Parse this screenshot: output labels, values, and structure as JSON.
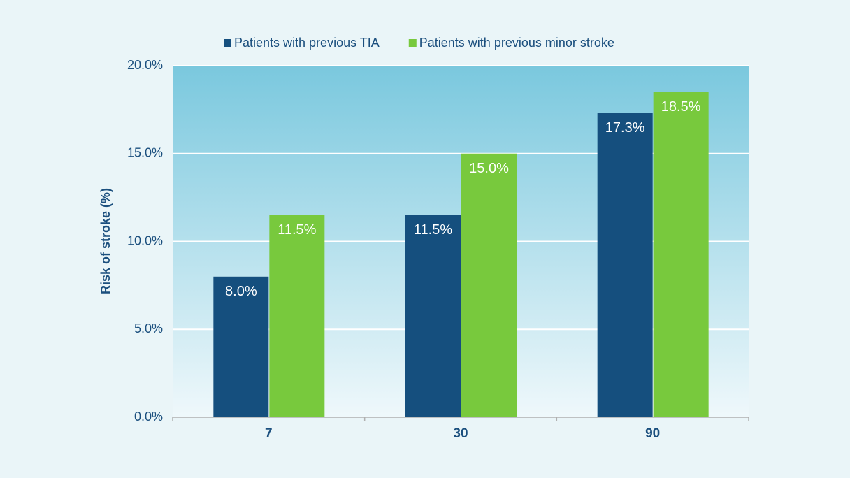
{
  "chart_data": {
    "type": "bar",
    "y_label": "Risk of stroke (%)",
    "categories": [
      "7",
      "30",
      "90"
    ],
    "series": [
      {
        "name": "Patients with previous TIA",
        "color": "#154f7e",
        "values": [
          8.0,
          11.5,
          17.3
        ],
        "value_labels": [
          "8.0%",
          "11.5%",
          "17.3%"
        ]
      },
      {
        "name": "Patients with previous minor stroke",
        "color": "#78c93d",
        "values": [
          11.5,
          15.0,
          18.5
        ],
        "value_labels": [
          "11.5%",
          "15.0%",
          "18.5%"
        ]
      }
    ],
    "ylim": [
      0,
      20
    ],
    "yticks": [
      {
        "value": 0,
        "label": "0.0%"
      },
      {
        "value": 5,
        "label": "5.0%"
      },
      {
        "value": 10,
        "label": "10.0%"
      },
      {
        "value": 15,
        "label": "15.0%"
      },
      {
        "value": 20,
        "label": "20.0%"
      }
    ],
    "grid": true,
    "legend": "top"
  }
}
